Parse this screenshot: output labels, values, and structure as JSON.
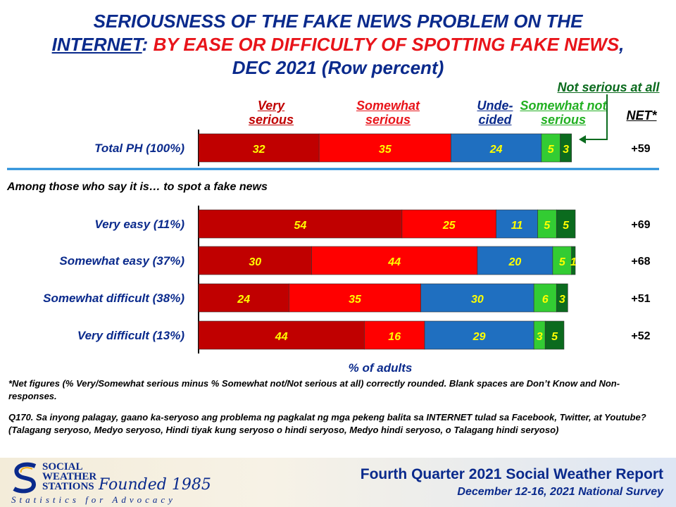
{
  "title": {
    "part1": "SERIOUSNESS OF THE FAKE NEWS PROBLEM ON THE",
    "part2": "INTERNET",
    "part3": ": ",
    "part4": "BY EASE OR DIFFICULTY OF SPOTTING FAKE NEWS",
    "part5": ",",
    "part6": "DEC 2021 (Row percent)"
  },
  "headers": {
    "very_serious": "Very serious",
    "somewhat_serious": "Somewhat serious",
    "undecided": "Unde- cided",
    "somewhat_not_serious": "Somewhat not serious",
    "not_serious_at_all": "Not serious at all",
    "net": "NET*"
  },
  "section_label": "Among those who say it is… to spot a fake news",
  "x_axis_label": "% of adults",
  "colors": {
    "very_serious": "#c00000",
    "somewhat_serious": "#ff0000",
    "undecided": "#1f6fc0",
    "somewhat_not_serious": "#33cc33",
    "not_serious_at_all": "#0b6b1e",
    "label_yellow": "#ffff00",
    "title_blue": "#0a2a8c",
    "divider_blue": "#1f8ad8"
  },
  "chart_data": {
    "type": "bar",
    "orientation": "horizontal",
    "stacked": true,
    "categories": [
      "Total PH (100%)",
      "Very easy (11%)",
      "Somewhat easy (37%)",
      "Somewhat difficult (38%)",
      "Very difficult (13%)"
    ],
    "series": [
      {
        "name": "Very serious",
        "values": [
          32,
          54,
          30,
          24,
          44
        ]
      },
      {
        "name": "Somewhat serious",
        "values": [
          35,
          25,
          44,
          35,
          16
        ]
      },
      {
        "name": "Undecided",
        "values": [
          24,
          11,
          20,
          30,
          29
        ]
      },
      {
        "name": "Somewhat not serious",
        "values": [
          5,
          5,
          5,
          6,
          3
        ]
      },
      {
        "name": "Not serious at all",
        "values": [
          3,
          5,
          1,
          3,
          5
        ]
      }
    ],
    "net": [
      "+59",
      "+69",
      "+68",
      "+51",
      "+52"
    ],
    "xlabel": "% of adults",
    "xlim": [
      0,
      100
    ]
  },
  "footnotes": {
    "net_note": "*Net figures (% Very/Somewhat serious minus % Somewhat not/Not serious at all) correctly rounded. Blank spaces are Don’t Know and Non-responses.",
    "question": "Q170. Sa inyong palagay, gaano ka-seryoso ang problema ng pagkalat ng mga pekeng balita sa INTERNET tulad sa Facebook, Twitter, at Youtube? (Talagang seryoso, Medyo seryoso, Hindi tiyak kung seryoso o hindi seryoso, Medyo hindi seryoso, o Talagang hindi seryoso)"
  },
  "footer": {
    "logo_line1": "SOCIAL",
    "logo_line2": "WEATHER",
    "logo_line3": "STATIONS",
    "founded": "Founded 1985",
    "tagline": "Statistics for Advocacy",
    "report_title": "Fourth Quarter 2021 Social Weather Report",
    "survey_dates": "December 12-16, 2021 National Survey"
  }
}
